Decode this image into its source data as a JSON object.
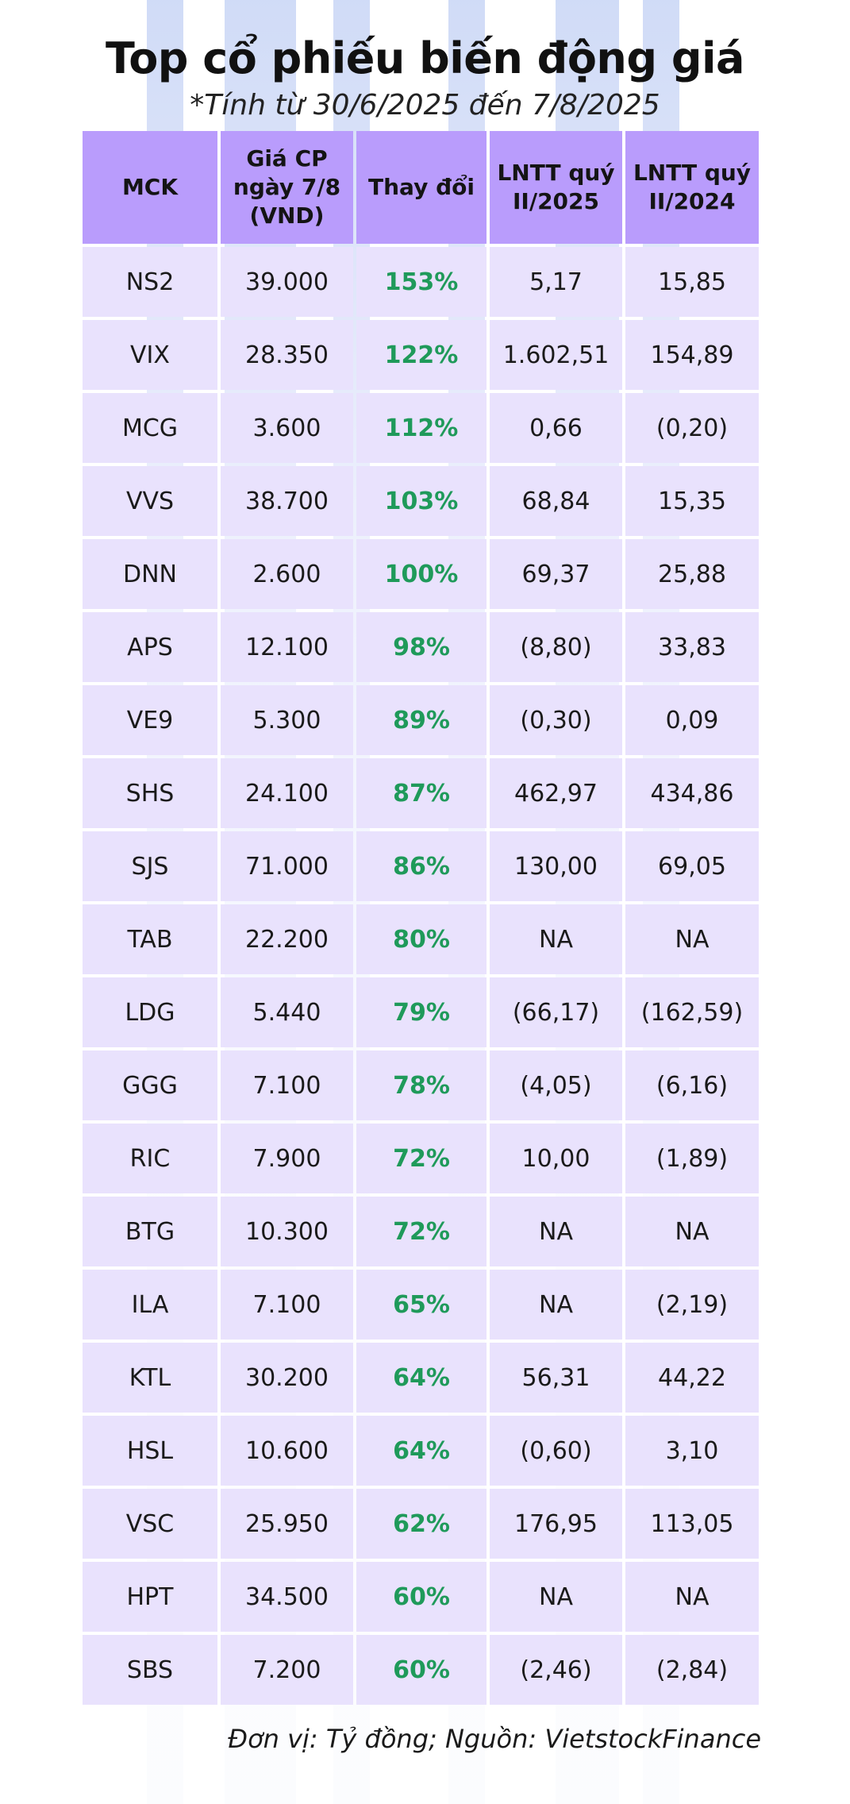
{
  "title": "Top cổ phiếu biến động giá",
  "subtitle": "*Tính từ 30/6/2025 đến 7/8/2025",
  "footer": "Đơn vị: Tỷ đồng; Nguồn: VietstockFinance",
  "colors": {
    "header_bg": "#b99cfc",
    "cell_bg": "#e9e2fd",
    "positive_change": "#1f9a5a"
  },
  "chart_data": {
    "type": "table",
    "columns": [
      "MCK",
      "Giá CP\nngày 7/8\n(VND)",
      "Thay đổi",
      "LNTT quý\nII/2025",
      "LNTT quý\nII/2024"
    ],
    "rows": [
      [
        "NS2",
        "39.000",
        "153%",
        "5,17",
        "15,85"
      ],
      [
        "VIX",
        "28.350",
        "122%",
        "1.602,51",
        "154,89"
      ],
      [
        "MCG",
        "3.600",
        "112%",
        "0,66",
        "(0,20)"
      ],
      [
        "VVS",
        "38.700",
        "103%",
        "68,84",
        "15,35"
      ],
      [
        "DNN",
        "2.600",
        "100%",
        "69,37",
        "25,88"
      ],
      [
        "APS",
        "12.100",
        "98%",
        "(8,80)",
        "33,83"
      ],
      [
        "VE9",
        "5.300",
        "89%",
        "(0,30)",
        "0,09"
      ],
      [
        "SHS",
        "24.100",
        "87%",
        "462,97",
        "434,86"
      ],
      [
        "SJS",
        "71.000",
        "86%",
        "130,00",
        "69,05"
      ],
      [
        "TAB",
        "22.200",
        "80%",
        "NA",
        "NA"
      ],
      [
        "LDG",
        "5.440",
        "79%",
        "(66,17)",
        "(162,59)"
      ],
      [
        "GGG",
        "7.100",
        "78%",
        "(4,05)",
        "(6,16)"
      ],
      [
        "RIC",
        "7.900",
        "72%",
        "10,00",
        "(1,89)"
      ],
      [
        "BTG",
        "10.300",
        "72%",
        "NA",
        "NA"
      ],
      [
        "ILA",
        "7.100",
        "65%",
        "NA",
        "(2,19)"
      ],
      [
        "KTL",
        "30.200",
        "64%",
        "56,31",
        "44,22"
      ],
      [
        "HSL",
        "10.600",
        "64%",
        "(0,60)",
        "3,10"
      ],
      [
        "VSC",
        "25.950",
        "62%",
        "176,95",
        "113,05"
      ],
      [
        "HPT",
        "34.500",
        "60%",
        "NA",
        "NA"
      ],
      [
        "SBS",
        "7.200",
        "60%",
        "(2,46)",
        "(2,84)"
      ]
    ]
  }
}
